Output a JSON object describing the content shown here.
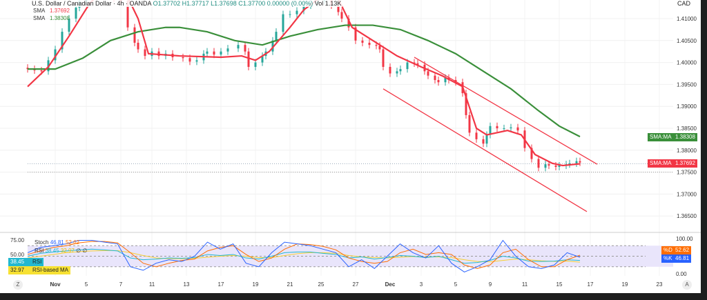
{
  "header": {
    "symbol": "U.S. Dollar / Canadian Dollar · 4h · OANDA",
    "ohlc": "O1.37702 H1.37717 L1.37698 C1.37700 0.00000 (0.00%)",
    "volume": "Vol 1.13K",
    "currency": "CAD"
  },
  "indicators": {
    "sma1_label": "SMA",
    "sma1_value": "1.37692",
    "sma2_label": "SMA",
    "sma2_value": "1.38308"
  },
  "price_tags": {
    "sma_green_label": "SMA:MA",
    "sma_green_value": "1.38308",
    "sma_red_label": "SMA:MA",
    "sma_red_value": "1.37692"
  },
  "oscillator": {
    "stoch_label": "Stoch",
    "stoch_k": "46.81",
    "stoch_d": "52.62",
    "rsi_label": "RSI",
    "rsi_value": "38.45",
    "rsi_ma": "32.97",
    "na1": "∅",
    "na2": "∅",
    "rsi_tag_value": "38.45",
    "rsi_tag_label": "RSI",
    "rsima_tag_value": "32.97",
    "rsima_tag_label": "RSI-based MA",
    "d_tag_label": "%D",
    "d_tag_value": "52.62",
    "k_tag_label": "%K",
    "k_tag_value": "46.81",
    "left_ticks": [
      "75.00",
      "50.00"
    ],
    "right_ticks": [
      "100.00",
      "0.00"
    ]
  },
  "buttons": {
    "zoom": "Z",
    "auto": "A"
  },
  "chart_data": {
    "type": "candlestick",
    "price_ticks": [
      1.41,
      1.405,
      1.4,
      1.395,
      1.39,
      1.385,
      1.38,
      1.375,
      1.37,
      1.365
    ],
    "x_ticks": [
      {
        "i": 8,
        "l": "Nov"
      },
      {
        "i": 17,
        "l": "5"
      },
      {
        "i": 27,
        "l": "7"
      },
      {
        "i": 36,
        "l": "11"
      },
      {
        "i": 46,
        "l": "13"
      },
      {
        "i": 56,
        "l": "17"
      },
      {
        "i": 66,
        "l": "19"
      },
      {
        "i": 76,
        "l": "21"
      },
      {
        "i": 85,
        "l": "25"
      },
      {
        "i": 95,
        "l": "27"
      },
      {
        "i": 105,
        "l": "Dec"
      },
      {
        "i": 114,
        "l": "3"
      },
      {
        "i": 124,
        "l": "5"
      },
      {
        "i": 134,
        "l": "9"
      },
      {
        "i": 144,
        "l": "11"
      },
      {
        "i": 154,
        "l": "15"
      },
      {
        "i": 163,
        "l": "17"
      },
      {
        "i": 173,
        "l": "19"
      },
      {
        "i": 183,
        "l": "23"
      }
    ],
    "closes": [
      [
        0,
        1.3985
      ],
      [
        2,
        1.3982
      ],
      [
        4,
        1.398
      ],
      [
        6,
        1.4005
      ],
      [
        8,
        1.403
      ],
      [
        10,
        1.407
      ],
      [
        12,
        1.41
      ],
      [
        14,
        1.4125
      ],
      [
        15,
        1.414
      ],
      [
        17,
        1.416
      ],
      [
        19,
        1.418
      ],
      [
        21,
        1.4165
      ],
      [
        23,
        1.415
      ],
      [
        25,
        1.4145
      ],
      [
        27,
        1.414
      ],
      [
        29,
        1.408
      ],
      [
        31,
        1.4045
      ],
      [
        32,
        1.403
      ],
      [
        34,
        1.4015
      ],
      [
        36,
        1.4025
      ],
      [
        38,
        1.4015
      ],
      [
        40,
        1.402
      ],
      [
        42,
        1.4012
      ],
      [
        45,
        1.401
      ],
      [
        47,
        1.4002
      ],
      [
        49,
        1.4005
      ],
      [
        51,
        1.402
      ],
      [
        52,
        1.4025
      ],
      [
        54,
        1.4018
      ],
      [
        56,
        1.4025
      ],
      [
        58,
        1.4032
      ],
      [
        61,
        1.404
      ],
      [
        63,
        1.4025
      ],
      [
        64,
        1.399
      ],
      [
        66,
        1.4
      ],
      [
        68,
        1.4015
      ],
      [
        69,
        1.4025
      ],
      [
        71,
        1.405
      ],
      [
        72,
        1.407
      ],
      [
        74,
        1.411
      ],
      [
        76,
        1.411
      ],
      [
        78,
        1.4118
      ],
      [
        80,
        1.413
      ],
      [
        82,
        1.4135
      ],
      [
        84,
        1.414
      ],
      [
        86,
        1.4142
      ],
      [
        88,
        1.413
      ],
      [
        90,
        1.4115
      ],
      [
        91,
        1.41
      ],
      [
        93,
        1.408
      ],
      [
        95,
        1.405
      ],
      [
        97,
        1.4045
      ],
      [
        99,
        1.404
      ],
      [
        101,
        1.4038
      ],
      [
        102,
        1.403
      ],
      [
        103,
        1.399
      ],
      [
        105,
        1.3975
      ],
      [
        107,
        1.398
      ],
      [
        108,
        1.3985
      ],
      [
        110,
        1.4
      ],
      [
        112,
        1.3998
      ],
      [
        113,
        1.3995
      ],
      [
        115,
        1.398
      ],
      [
        116,
        1.397
      ],
      [
        118,
        1.396
      ],
      [
        119,
        1.3955
      ],
      [
        121,
        1.3965
      ],
      [
        122,
        1.396
      ],
      [
        124,
        1.3955
      ],
      [
        126,
        1.393
      ],
      [
        127,
        1.388
      ],
      [
        128,
        1.384
      ],
      [
        130,
        1.3825
      ],
      [
        132,
        1.3815
      ],
      [
        133,
        1.3835
      ],
      [
        134,
        1.3855
      ],
      [
        136,
        1.385
      ],
      [
        138,
        1.385
      ],
      [
        140,
        1.3852
      ],
      [
        142,
        1.3845
      ],
      [
        144,
        1.3805
      ],
      [
        146,
        1.378
      ],
      [
        148,
        1.376
      ],
      [
        150,
        1.3768
      ],
      [
        151,
        1.3765
      ],
      [
        153,
        1.3762
      ],
      [
        154,
        1.3765
      ],
      [
        156,
        1.3768
      ],
      [
        157,
        1.377
      ],
      [
        159,
        1.3775
      ],
      [
        160,
        1.3772
      ]
    ],
    "sma_fast": {
      "name": "SMA",
      "color": "#f23645",
      "points": [
        [
          0,
          1.3945
        ],
        [
          6,
          1.399
        ],
        [
          12,
          1.406
        ],
        [
          18,
          1.4135
        ],
        [
          22,
          1.4165
        ],
        [
          28,
          1.4165
        ],
        [
          32,
          1.41
        ],
        [
          35,
          1.402
        ],
        [
          44,
          1.4015
        ],
        [
          56,
          1.4012
        ],
        [
          62,
          1.4015
        ],
        [
          66,
          1.4005
        ],
        [
          70,
          1.4025
        ],
        [
          76,
          1.408
        ],
        [
          80,
          1.412
        ],
        [
          86,
          1.4155
        ],
        [
          90,
          1.4145
        ],
        [
          94,
          1.408
        ],
        [
          101,
          1.4045
        ],
        [
          107,
          1.4015
        ],
        [
          114,
          1.399
        ],
        [
          120,
          1.397
        ],
        [
          126,
          1.3945
        ],
        [
          130,
          1.385
        ],
        [
          133,
          1.3835
        ],
        [
          139,
          1.3845
        ],
        [
          143,
          1.3835
        ],
        [
          147,
          1.379
        ],
        [
          152,
          1.377
        ],
        [
          155,
          1.3765
        ],
        [
          160,
          1.3769
        ]
      ]
    },
    "sma_slow": {
      "name": "SMA",
      "color": "#3a8f3a",
      "points": [
        [
          0,
          1.3985
        ],
        [
          8,
          1.3985
        ],
        [
          16,
          1.401
        ],
        [
          24,
          1.405
        ],
        [
          32,
          1.407
        ],
        [
          40,
          1.408
        ],
        [
          44,
          1.408
        ],
        [
          52,
          1.407
        ],
        [
          60,
          1.405
        ],
        [
          68,
          1.404
        ],
        [
          76,
          1.406
        ],
        [
          84,
          1.4075
        ],
        [
          92,
          1.4085
        ],
        [
          100,
          1.4085
        ],
        [
          108,
          1.4075
        ],
        [
          116,
          1.405
        ],
        [
          124,
          1.402
        ],
        [
          132,
          1.398
        ],
        [
          140,
          1.394
        ],
        [
          148,
          1.389
        ],
        [
          154,
          1.3855
        ],
        [
          160,
          1.3831
        ]
      ]
    },
    "channel": {
      "upper": [
        [
          112,
          1.4012
        ],
        [
          165,
          1.3768
        ]
      ],
      "lower": [
        [
          103,
          1.394
        ],
        [
          162,
          1.366
        ]
      ]
    },
    "stoch_k": [
      60,
      75,
      80,
      85,
      95,
      95,
      90,
      85,
      20,
      10,
      30,
      40,
      35,
      50,
      90,
      70,
      85,
      30,
      20,
      60,
      90,
      85,
      80,
      70,
      60,
      20,
      40,
      15,
      50,
      85,
      60,
      45,
      80,
      30,
      5,
      20,
      40,
      95,
      50,
      20,
      15,
      25,
      60,
      47
    ],
    "stoch_d": [
      55,
      65,
      75,
      80,
      88,
      92,
      92,
      88,
      60,
      30,
      20,
      30,
      38,
      42,
      65,
      75,
      80,
      55,
      35,
      45,
      70,
      85,
      83,
      78,
      68,
      45,
      35,
      30,
      35,
      60,
      70,
      55,
      60,
      55,
      25,
      15,
      25,
      60,
      70,
      40,
      20,
      20,
      40,
      53
    ],
    "rsi": [
      50,
      58,
      62,
      65,
      68,
      70,
      68,
      65,
      45,
      40,
      42,
      45,
      44,
      46,
      55,
      52,
      55,
      45,
      42,
      50,
      60,
      62,
      62,
      58,
      55,
      45,
      48,
      42,
      46,
      52,
      50,
      46,
      50,
      40,
      30,
      32,
      38,
      50,
      45,
      36,
      35,
      36,
      40,
      38
    ],
    "rsi_ma": [
      45,
      50,
      55,
      60,
      63,
      65,
      66,
      66,
      60,
      52,
      45,
      43,
      43,
      44,
      47,
      50,
      52,
      50,
      46,
      46,
      52,
      57,
      60,
      60,
      58,
      52,
      48,
      46,
      45,
      47,
      49,
      48,
      48,
      46,
      40,
      35,
      34,
      38,
      42,
      40,
      37,
      35,
      36,
      33
    ]
  }
}
